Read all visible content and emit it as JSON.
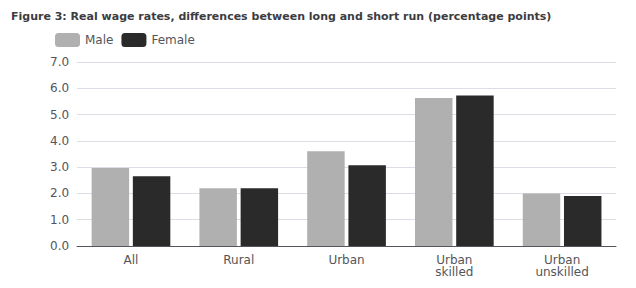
{
  "chart_data": {
    "type": "bar",
    "title": "Figure 3: Real wage rates, differences between long and short run (percentage points)",
    "categories": [
      "All",
      "Rural",
      "Urban",
      "Urban\nskilled",
      "Urban\nunskilled"
    ],
    "series": [
      {
        "name": "Male",
        "color": "#b0b0b0",
        "values": [
          2.97,
          2.2,
          3.6,
          5.63,
          2.0
        ]
      },
      {
        "name": "Female",
        "color": "#2a2a2a",
        "values": [
          2.65,
          2.2,
          3.07,
          5.73,
          1.9
        ]
      }
    ],
    "ylim": [
      0.0,
      7.0
    ],
    "yticks": [
      {
        "value": 0.0,
        "label": "0.0"
      },
      {
        "value": 1.0,
        "label": "1.0"
      },
      {
        "value": 2.0,
        "label": "2.0"
      },
      {
        "value": 3.0,
        "label": "3.0"
      },
      {
        "value": 4.0,
        "label": "4.0"
      },
      {
        "value": 5.0,
        "label": "5.0"
      },
      {
        "value": 6.0,
        "label": "6.0"
      },
      {
        "value": 7.0,
        "label": "7.0"
      }
    ],
    "grid": true,
    "legend": "upper left"
  }
}
